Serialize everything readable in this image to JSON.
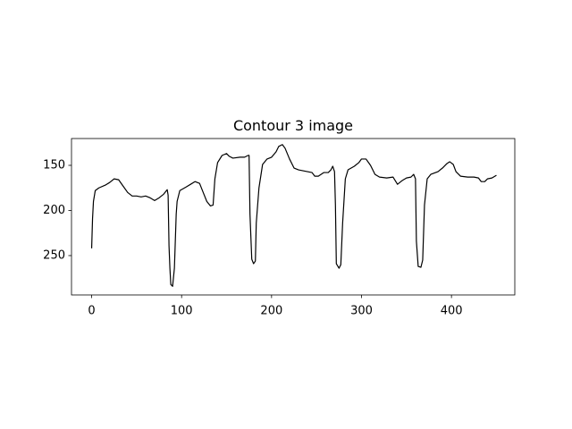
{
  "chart_data": {
    "type": "line",
    "title": "Contour 3 image",
    "x": [
      0,
      1,
      2,
      4,
      8,
      15,
      20,
      25,
      30,
      35,
      40,
      45,
      50,
      55,
      60,
      65,
      70,
      75,
      80,
      84,
      85,
      86,
      87,
      88,
      90,
      92,
      94,
      95,
      98,
      105,
      110,
      115,
      120,
      124,
      128,
      132,
      135,
      137,
      140,
      145,
      150,
      153,
      157,
      165,
      170,
      174,
      175,
      176,
      178,
      180,
      182,
      183,
      186,
      190,
      195,
      200,
      205,
      208,
      212,
      215,
      220,
      225,
      230,
      240,
      245,
      248,
      252,
      258,
      263,
      266,
      268,
      270,
      271,
      272,
      275,
      277,
      279,
      282,
      285,
      292,
      297,
      300,
      305,
      310,
      315,
      320,
      328,
      335,
      340,
      345,
      350,
      355,
      358,
      360,
      361,
      363,
      366,
      368,
      370,
      373,
      377,
      385,
      390,
      395,
      398,
      402,
      405,
      410,
      418,
      425,
      430,
      433,
      437,
      440,
      445,
      450
    ],
    "series": [
      {
        "color": "#000000",
        "values": [
          242,
          209,
          190,
          178,
          175,
          172,
          169,
          165,
          166,
          173,
          180,
          184,
          184,
          185,
          184,
          186,
          189,
          186,
          182,
          177,
          183,
          239,
          264,
          282,
          284,
          264,
          204,
          190,
          178,
          174,
          171,
          168,
          170,
          180,
          190,
          195,
          194,
          165,
          147,
          139,
          137,
          140,
          142,
          141,
          141,
          139,
          139,
          204,
          254,
          259,
          256,
          214,
          175,
          149,
          143,
          141,
          135,
          129,
          127,
          131,
          143,
          153,
          155,
          157,
          158,
          162,
          162,
          158,
          158,
          155,
          151,
          157,
          194,
          259,
          264,
          260,
          214,
          165,
          155,
          151,
          147,
          143,
          143,
          150,
          160,
          163,
          164,
          163,
          171,
          167,
          164,
          163,
          160,
          165,
          234,
          262,
          263,
          255,
          194,
          165,
          160,
          157,
          153,
          148,
          146,
          149,
          157,
          162,
          163,
          163,
          164,
          168,
          168,
          165,
          164,
          161
        ]
      }
    ],
    "xlim": [
      -22.4,
      470.4
    ],
    "ylim": [
      293.6,
      120.3
    ],
    "xticks": [
      0,
      100,
      200,
      300,
      400
    ],
    "yticks": [
      150,
      200,
      250
    ]
  }
}
